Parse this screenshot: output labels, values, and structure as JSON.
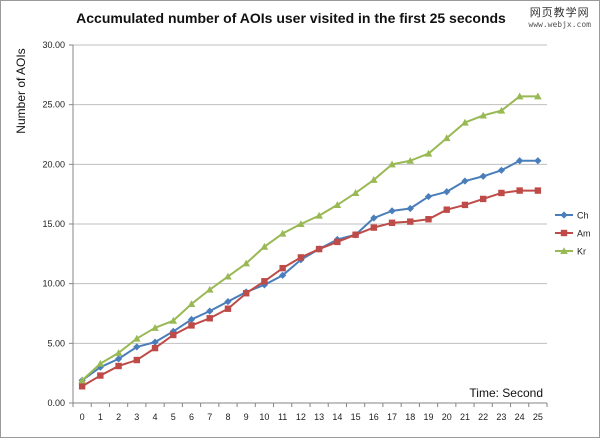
{
  "watermark": {
    "main": "网页教学网",
    "sub": "www.webjx.com"
  },
  "chart_data": {
    "type": "line",
    "title": "Accumulated number of AOIs user visited in the first 25 seconds",
    "ylabel": "Number of AOIs",
    "xlabel": "Time: Second",
    "x": [
      0,
      1,
      2,
      3,
      4,
      5,
      6,
      7,
      8,
      9,
      10,
      11,
      12,
      13,
      14,
      15,
      16,
      17,
      18,
      19,
      20,
      21,
      22,
      23,
      24,
      25
    ],
    "ylim": [
      0,
      30
    ],
    "yticks": [
      "0.00",
      "5.00",
      "10.00",
      "15.00",
      "20.00",
      "25.00",
      "30.00"
    ],
    "grid": true,
    "legend_position": "right",
    "series": [
      {
        "name": "Ch",
        "color": "#4a7ebb",
        "marker": "diamond",
        "values": [
          1.9,
          3.0,
          3.7,
          4.7,
          5.1,
          6.0,
          7.0,
          7.7,
          8.5,
          9.3,
          9.9,
          10.7,
          12.0,
          12.9,
          13.7,
          14.1,
          15.5,
          16.1,
          16.3,
          17.3,
          17.7,
          18.6,
          19.0,
          19.5,
          20.3,
          20.3
        ]
      },
      {
        "name": "Am",
        "color": "#be4b48",
        "marker": "square",
        "values": [
          1.4,
          2.3,
          3.1,
          3.6,
          4.6,
          5.7,
          6.5,
          7.1,
          7.9,
          9.2,
          10.2,
          11.3,
          12.2,
          12.9,
          13.5,
          14.1,
          14.7,
          15.1,
          15.2,
          15.4,
          16.2,
          16.6,
          17.1,
          17.6,
          17.8,
          17.8
        ]
      },
      {
        "name": "Kr",
        "color": "#98b954",
        "marker": "triangle",
        "values": [
          1.9,
          3.3,
          4.2,
          5.4,
          6.3,
          6.9,
          8.3,
          9.5,
          10.6,
          11.7,
          13.1,
          14.2,
          15.0,
          15.7,
          16.6,
          17.6,
          18.7,
          20.0,
          20.3,
          20.9,
          22.2,
          23.5,
          24.1,
          24.5,
          25.7,
          25.7
        ]
      }
    ]
  }
}
